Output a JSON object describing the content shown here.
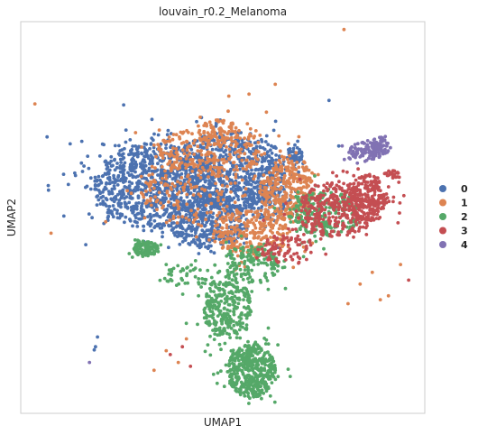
{
  "chart_data": {
    "type": "scatter",
    "title": "louvain_r0.2_Melanoma",
    "xlabel": "UMAP1",
    "ylabel": "UMAP2",
    "grid": false,
    "ticks_shown": false,
    "legend_placement": "right",
    "xlim": [
      0,
      100
    ],
    "ylim": [
      0,
      100
    ],
    "legend": [
      {
        "label": "0",
        "color": "#4c72b0"
      },
      {
        "label": "1",
        "color": "#dd8452"
      },
      {
        "label": "2",
        "color": "#55a868"
      },
      {
        "label": "3",
        "color": "#c44e52"
      },
      {
        "label": "4",
        "color": "#8172b3"
      }
    ],
    "series": [
      {
        "cluster": "0",
        "color": "#4c72b0",
        "regions": [
          {
            "cx": 33,
            "cy": 58,
            "rx": 15,
            "ry": 11,
            "n": 850
          },
          {
            "cx": 52,
            "cy": 62,
            "rx": 14,
            "ry": 10,
            "n": 700
          },
          {
            "cx": 46,
            "cy": 49,
            "rx": 10,
            "ry": 7,
            "n": 350
          },
          {
            "cx": 61,
            "cy": 56,
            "rx": 6,
            "ry": 7,
            "n": 180
          },
          {
            "cx": 68,
            "cy": 66,
            "rx": 2,
            "ry": 2,
            "n": 50
          }
        ],
        "points": [
          [
            18.5,
            17
          ],
          [
            18.2,
            16.2
          ],
          [
            19,
            19.5
          ]
        ]
      },
      {
        "cluster": "1",
        "color": "#dd8452",
        "regions": [
          {
            "cx": 47,
            "cy": 67,
            "rx": 14,
            "ry": 6,
            "n": 250
          },
          {
            "cx": 66,
            "cy": 57,
            "rx": 7,
            "ry": 8,
            "n": 320
          },
          {
            "cx": 57,
            "cy": 46,
            "rx": 10,
            "ry": 6,
            "n": 300
          },
          {
            "cx": 42,
            "cy": 57,
            "rx": 13,
            "ry": 8,
            "n": 160
          },
          {
            "cx": 49,
            "cy": 72,
            "rx": 5,
            "ry": 3,
            "n": 60
          }
        ],
        "points": [
          [
            80,
            98
          ],
          [
            3.5,
            79
          ],
          [
            51.5,
            81
          ],
          [
            56.5,
            81.5
          ],
          [
            63,
            84
          ],
          [
            7.5,
            46
          ],
          [
            39,
            13
          ],
          [
            33,
            11
          ],
          [
            41,
            19
          ],
          [
            36,
            16
          ],
          [
            87,
            36
          ],
          [
            89,
            29
          ],
          [
            91,
            30
          ],
          [
            84,
            33
          ],
          [
            81,
            28
          ],
          [
            94,
            38
          ]
        ]
      },
      {
        "cluster": "2",
        "color": "#55a868",
        "regions": [
          {
            "cx": 57,
            "cy": 11,
            "rx": 6,
            "ry": 7,
            "n": 450
          },
          {
            "cx": 51,
            "cy": 27,
            "rx": 6,
            "ry": 8,
            "n": 280
          },
          {
            "cx": 57,
            "cy": 38,
            "rx": 7,
            "ry": 5,
            "n": 150
          },
          {
            "cx": 75,
            "cy": 51,
            "rx": 9,
            "ry": 6,
            "n": 240
          },
          {
            "cx": 31,
            "cy": 42,
            "rx": 3,
            "ry": 2,
            "n": 110
          },
          {
            "cx": 41,
            "cy": 35,
            "rx": 7,
            "ry": 3,
            "n": 50
          }
        ],
        "points": [
          [
            40,
            34
          ],
          [
            36,
            38
          ],
          [
            44,
            30
          ],
          [
            47,
            33
          ],
          [
            70,
            40
          ],
          [
            75,
            42
          ]
        ]
      },
      {
        "cluster": "3",
        "color": "#c44e52",
        "regions": [
          {
            "cx": 78,
            "cy": 52,
            "rx": 10,
            "ry": 7,
            "n": 330
          },
          {
            "cx": 86,
            "cy": 55,
            "rx": 5,
            "ry": 6,
            "n": 210
          },
          {
            "cx": 66,
            "cy": 42,
            "rx": 7,
            "ry": 4,
            "n": 90
          },
          {
            "cx": 92,
            "cy": 61,
            "rx": 2,
            "ry": 1,
            "n": 25
          }
        ],
        "points": [
          [
            96,
            34
          ],
          [
            37,
            15
          ],
          [
            40,
            17
          ],
          [
            42,
            12
          ]
        ]
      },
      {
        "cluster": "4",
        "color": "#8172b3",
        "regions": [
          {
            "cx": 86,
            "cy": 67,
            "rx": 5,
            "ry": 2.2,
            "n": 110
          },
          {
            "cx": 89,
            "cy": 69,
            "rx": 2,
            "ry": 1.5,
            "n": 30
          }
        ],
        "points": [
          [
            17,
            13
          ]
        ]
      }
    ]
  }
}
